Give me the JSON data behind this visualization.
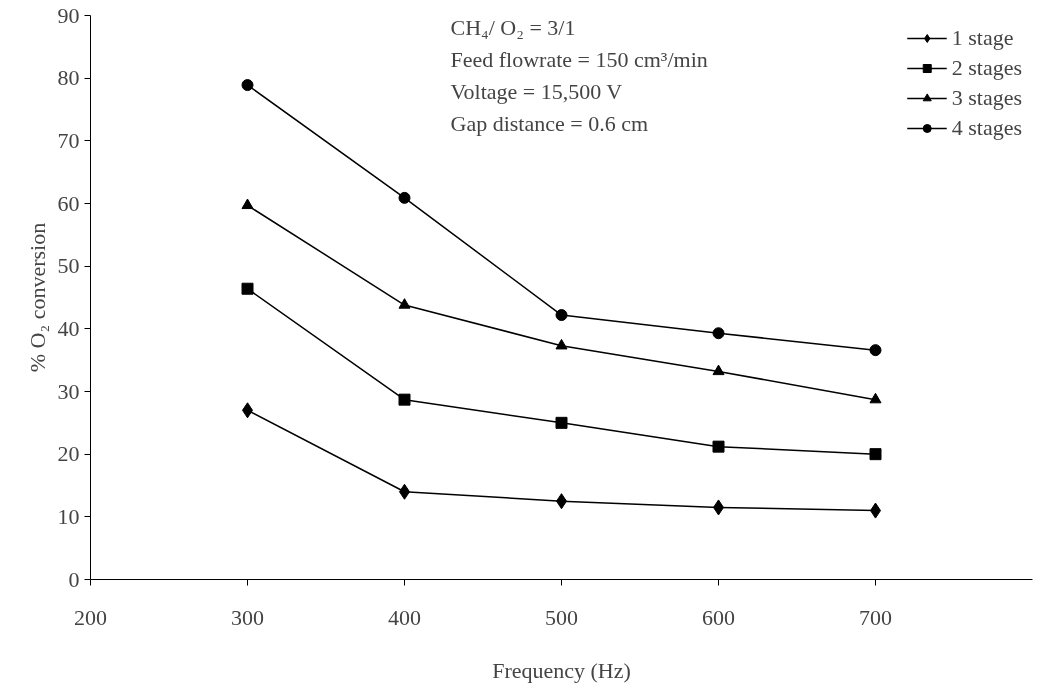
{
  "chart_data": {
    "type": "line",
    "xlabel": "Frequency (Hz)",
    "ylabel": "% O₂ conversion",
    "x": [
      300,
      400,
      500,
      600,
      700
    ],
    "xlim": [
      200,
      800
    ],
    "xticks": [
      200,
      300,
      400,
      500,
      600,
      700
    ],
    "ylim": [
      0,
      90
    ],
    "yticks": [
      0,
      10,
      20,
      30,
      40,
      50,
      60,
      70,
      80,
      90
    ],
    "grid": false,
    "legend": "top right",
    "line_style": "solid",
    "series": [
      {
        "name": "1 stage",
        "color": "#000000",
        "marker": "diamond",
        "values": [
          27,
          14,
          12.5,
          11.5,
          11
        ]
      },
      {
        "name": "2 stages",
        "color": "#000000",
        "marker": "square",
        "values": [
          46.4,
          28.7,
          25,
          21.2,
          20
        ]
      },
      {
        "name": "3 stages",
        "color": "#000000",
        "marker": "triangle",
        "values": [
          59.7,
          43.8,
          37.3,
          33.2,
          28.7
        ]
      },
      {
        "name": "4 stages",
        "color": "#000000",
        "marker": "circle",
        "values": [
          78.9,
          60.9,
          42.2,
          39.3,
          36.6
        ]
      }
    ],
    "annotations": [
      "CH₄/ O₂            = 3/1",
      "Feed flowrate = 150 cm³/min",
      "Voltage            = 15,500 V",
      "Gap distance   = 0.6 cm"
    ]
  }
}
